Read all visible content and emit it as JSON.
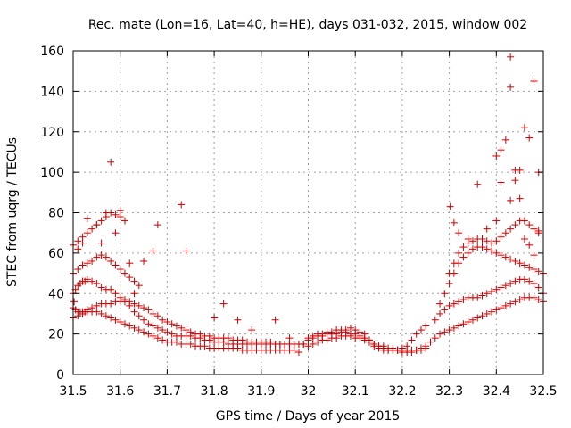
{
  "chart_data": {
    "type": "scatter",
    "title": "Rec. mate (Lon=16, Lat=40, h=HE), days 031-032, 2015, window 002",
    "xlabel": "GPS time / Days of year 2015",
    "ylabel": "STEC from uqrg / TECUs",
    "xlim": [
      31.5,
      32.5
    ],
    "ylim": [
      0,
      160
    ],
    "grid": true,
    "marker": "plus",
    "color": "#cc0000",
    "xticks": [
      31.5,
      31.6,
      31.7,
      31.8,
      31.9,
      32.0,
      32.1,
      32.2,
      32.3,
      32.4,
      32.5
    ],
    "xtick_labels": [
      "31.5",
      "31.6",
      "31.7",
      "31.8",
      "31.9",
      "32",
      "32.1",
      "32.2",
      "32.3",
      "32.4",
      "32.5"
    ],
    "yticks": [
      0,
      20,
      40,
      60,
      80,
      100,
      120,
      140,
      160
    ],
    "ytick_labels": [
      "0",
      "20",
      "40",
      "60",
      "80",
      "100",
      "120",
      "140",
      "160"
    ],
    "series": [
      {
        "name": "STEC",
        "x": [
          31.5,
          31.505,
          31.51,
          31.515,
          31.52,
          31.525,
          31.53,
          31.54,
          31.55,
          31.56,
          31.57,
          31.58,
          31.59,
          31.6,
          31.61,
          31.62,
          31.63,
          31.64,
          31.65,
          31.66,
          31.67,
          31.68,
          31.69,
          31.7,
          31.71,
          31.72,
          31.73,
          31.74,
          31.75,
          31.76,
          31.77,
          31.78,
          31.79,
          31.8,
          31.81,
          31.82,
          31.83,
          31.84,
          31.85,
          31.86,
          31.87,
          31.88,
          31.89,
          31.9,
          31.91,
          31.92,
          31.93,
          31.94,
          31.95,
          31.96,
          31.97,
          31.98,
          31.99,
          31.5,
          31.505,
          31.51,
          31.515,
          31.52,
          31.525,
          31.53,
          31.54,
          31.55,
          31.56,
          31.57,
          31.58,
          31.59,
          31.6,
          31.61,
          31.62,
          31.63,
          31.64,
          31.65,
          31.66,
          31.67,
          31.68,
          31.69,
          31.7,
          31.71,
          31.72,
          31.73,
          31.74,
          31.75,
          31.76,
          31.77,
          31.78,
          31.79,
          31.8,
          31.81,
          31.82,
          31.83,
          31.84,
          31.85,
          31.86,
          31.87,
          31.88,
          31.89,
          31.9,
          31.91,
          31.92,
          31.93,
          31.94,
          31.95,
          31.96,
          31.97,
          31.98,
          31.99,
          31.5,
          31.51,
          31.52,
          31.53,
          31.54,
          31.55,
          31.56,
          31.57,
          31.58,
          31.59,
          31.6,
          31.61,
          31.62,
          31.63,
          31.64,
          31.65,
          31.66,
          31.67,
          31.68,
          31.69,
          31.7,
          31.71,
          31.72,
          31.73,
          31.74,
          31.75,
          31.76,
          31.77,
          31.78,
          31.79,
          31.8,
          31.81,
          31.82,
          31.83,
          31.84,
          31.85,
          31.86,
          31.87,
          31.88,
          31.89,
          31.9,
          31.91,
          31.92,
          31.93,
          31.94,
          31.95,
          31.96,
          31.97,
          31.98,
          31.5,
          31.51,
          31.52,
          31.53,
          31.54,
          31.55,
          31.56,
          31.57,
          31.58,
          31.59,
          31.6,
          31.61,
          31.62,
          31.63,
          31.64,
          31.5,
          31.51,
          31.52,
          31.53,
          31.54,
          31.55,
          31.56,
          31.57,
          31.58,
          31.59,
          31.6,
          31.61,
          31.502,
          31.51,
          31.52,
          31.53,
          31.55,
          31.56,
          31.57,
          31.58,
          31.59,
          31.6,
          31.62,
          31.63,
          31.65,
          31.67,
          31.68,
          31.73,
          31.74,
          31.8,
          31.82,
          31.85,
          31.88,
          31.93,
          31.96,
          32.0,
          32.01,
          32.02,
          32.03,
          32.04,
          32.05,
          32.06,
          32.07,
          32.08,
          32.09,
          32.1,
          32.11,
          32.12,
          32.13,
          32.14,
          32.15,
          32.16,
          32.17,
          32.18,
          32.19,
          32.2,
          32.21,
          32.22,
          32.23,
          32.24,
          32.25,
          32.0,
          32.01,
          32.02,
          32.03,
          32.04,
          32.05,
          32.06,
          32.07,
          32.08,
          32.09,
          32.1,
          32.11,
          32.12,
          32.13,
          32.14,
          32.15,
          32.16,
          32.17,
          32.18,
          32.19,
          32.2,
          32.21,
          32.22,
          32.23,
          32.24,
          32.25,
          32.0,
          32.01,
          32.02,
          32.03,
          32.04,
          32.05,
          32.06,
          32.07,
          32.08,
          32.09,
          32.1,
          32.11,
          32.12,
          32.13,
          32.14,
          32.15,
          32.16,
          32.17,
          32.18,
          32.19,
          32.2,
          32.21,
          32.22,
          32.23,
          32.24,
          32.25,
          32.26,
          32.27,
          32.28,
          32.29,
          32.3,
          32.31,
          32.32,
          32.33,
          32.34,
          32.35,
          32.36,
          32.37,
          32.38,
          32.39,
          32.4,
          32.41,
          32.42,
          32.43,
          32.44,
          32.45,
          32.46,
          32.47,
          32.48,
          32.49,
          32.5,
          32.27,
          32.28,
          32.29,
          32.3,
          32.31,
          32.32,
          32.33,
          32.34,
          32.35,
          32.36,
          32.37,
          32.38,
          32.39,
          32.4,
          32.41,
          32.42,
          32.43,
          32.44,
          32.45,
          32.46,
          32.47,
          32.48,
          32.49,
          32.5,
          32.28,
          32.29,
          32.3,
          32.31,
          32.32,
          32.33,
          32.34,
          32.35,
          32.36,
          32.37,
          32.38,
          32.39,
          32.4,
          32.41,
          32.42,
          32.43,
          32.44,
          32.45,
          32.46,
          32.47,
          32.48,
          32.49,
          32.5,
          32.3,
          32.31,
          32.32,
          32.33,
          32.34,
          32.35,
          32.36,
          32.37,
          32.38,
          32.39,
          32.4,
          32.41,
          32.42,
          32.43,
          32.44,
          32.45,
          32.46,
          32.47,
          32.48,
          32.49,
          32.302,
          32.31,
          32.32,
          32.34,
          32.36,
          32.38,
          32.4,
          32.41,
          32.42,
          32.43,
          32.44,
          32.45,
          32.46,
          32.47,
          32.48,
          32.49,
          32.4,
          32.41,
          32.43,
          32.43,
          32.44,
          32.45,
          32.46,
          32.47,
          32.48,
          32.49
        ],
        "y": [
          33,
          32,
          31,
          31,
          31,
          31,
          32,
          33,
          34,
          35,
          35,
          35,
          36,
          36,
          36,
          34,
          31,
          29,
          27,
          25,
          24,
          23,
          22,
          21,
          20,
          19,
          19,
          19,
          19,
          18,
          18,
          17,
          17,
          16,
          16,
          16,
          15,
          15,
          15,
          15,
          15,
          15,
          15,
          15,
          15,
          15,
          15,
          15,
          15,
          15,
          15,
          15,
          15,
          40,
          42,
          44,
          45,
          46,
          46,
          47,
          46,
          45,
          43,
          42,
          42,
          40,
          38,
          37,
          36,
          35,
          34,
          33,
          32,
          30,
          29,
          27,
          26,
          25,
          24,
          23,
          22,
          21,
          20,
          20,
          19,
          19,
          18,
          18,
          18,
          18,
          17,
          17,
          17,
          16,
          16,
          16,
          16,
          16,
          16,
          15,
          15,
          15,
          15,
          15,
          15,
          15,
          28,
          29,
          30,
          31,
          31,
          31,
          30,
          29,
          28,
          27,
          26,
          25,
          24,
          23,
          22,
          21,
          20,
          19,
          18,
          17,
          16,
          16,
          16,
          15,
          15,
          15,
          14,
          14,
          14,
          13,
          13,
          13,
          13,
          13,
          13,
          13,
          12,
          12,
          12,
          12,
          12,
          12,
          12,
          12,
          12,
          12,
          12,
          12,
          11,
          50,
          52,
          54,
          55,
          56,
          58,
          59,
          58,
          56,
          54,
          52,
          50,
          48,
          46,
          44,
          64,
          66,
          68,
          70,
          72,
          74,
          76,
          78,
          80,
          79,
          78,
          76,
          36,
          62,
          65,
          77,
          74,
          65,
          80,
          105,
          70,
          81,
          55,
          40,
          56,
          61,
          74,
          84,
          61,
          28,
          35,
          27,
          22,
          27,
          18,
          14,
          15,
          16,
          17,
          17,
          18,
          18,
          19,
          19,
          19,
          18,
          18,
          17,
          16,
          15,
          14,
          14,
          13,
          13,
          12,
          12,
          12,
          12,
          12,
          13,
          14,
          17,
          18,
          19,
          19,
          20,
          20,
          20,
          21,
          21,
          20,
          20,
          19,
          18,
          17,
          15,
          14,
          13,
          12,
          12,
          12,
          11,
          11,
          11,
          12,
          12,
          13,
          18,
          19,
          20,
          20,
          21,
          21,
          22,
          22,
          22,
          23,
          22,
          21,
          20,
          17,
          14,
          13,
          12,
          12,
          12,
          12,
          13,
          14,
          17,
          20,
          22,
          24,
          16,
          18,
          20,
          21,
          22,
          23,
          24,
          25,
          26,
          27,
          28,
          29,
          30,
          31,
          32,
          33,
          34,
          35,
          36,
          37,
          38,
          38,
          38,
          37,
          36,
          27,
          30,
          32,
          34,
          35,
          36,
          37,
          38,
          38,
          38,
          39,
          40,
          41,
          42,
          43,
          44,
          45,
          46,
          47,
          47,
          46,
          45,
          43,
          40,
          35,
          40,
          45,
          50,
          55,
          58,
          60,
          62,
          63,
          63,
          62,
          61,
          60,
          59,
          58,
          57,
          56,
          55,
          54,
          53,
          52,
          51,
          50,
          50,
          55,
          60,
          63,
          65,
          66,
          67,
          67,
          66,
          65,
          66,
          68,
          70,
          72,
          74,
          76,
          76,
          74,
          72,
          70,
          83,
          75,
          70,
          67,
          94,
          72,
          76,
          95,
          116,
          86,
          101,
          101,
          122,
          117,
          145,
          100,
          108,
          111,
          142,
          157,
          96,
          87,
          67,
          64,
          59,
          71
        ]
      }
    ]
  }
}
